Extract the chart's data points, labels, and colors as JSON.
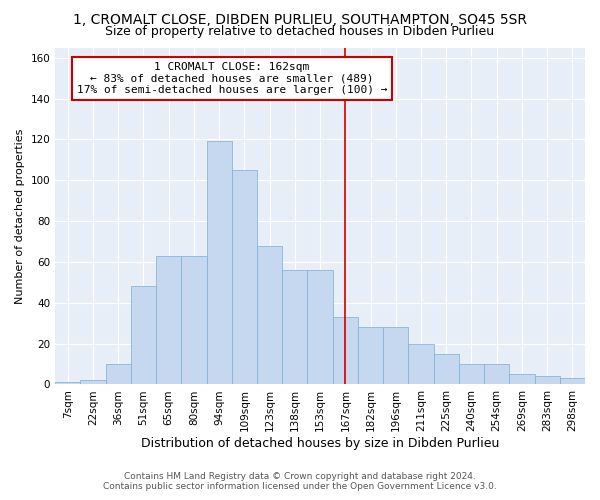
{
  "title": "1, CROMALT CLOSE, DIBDEN PURLIEU, SOUTHAMPTON, SO45 5SR",
  "subtitle": "Size of property relative to detached houses in Dibden Purlieu",
  "xlabel": "Distribution of detached houses by size in Dibden Purlieu",
  "ylabel": "Number of detached properties",
  "categories": [
    "7sqm",
    "22sqm",
    "36sqm",
    "51sqm",
    "65sqm",
    "80sqm",
    "94sqm",
    "109sqm",
    "123sqm",
    "138sqm",
    "153sqm",
    "167sqm",
    "182sqm",
    "196sqm",
    "211sqm",
    "225sqm",
    "240sqm",
    "254sqm",
    "269sqm",
    "283sqm",
    "298sqm"
  ],
  "values": [
    1,
    2,
    10,
    48,
    63,
    63,
    119,
    105,
    68,
    56,
    56,
    33,
    28,
    28,
    20,
    15,
    10,
    10,
    5,
    4,
    3
  ],
  "bar_color": "#c5d8ef",
  "bar_edge_color": "#7aaed6",
  "vline_pos": 11.0,
  "vline_color": "#cc0000",
  "annot_line1": "1 CROMALT CLOSE: 162sqm",
  "annot_line2": "← 83% of detached houses are smaller (489)",
  "annot_line3": "17% of semi-detached houses are larger (100) →",
  "annot_box_edgecolor": "#cc0000",
  "bg_color": "#e8eef8",
  "grid_color": "#ffffff",
  "footer_line1": "Contains HM Land Registry data © Crown copyright and database right 2024.",
  "footer_line2": "Contains public sector information licensed under the Open Government Licence v3.0.",
  "title_fontsize": 10,
  "subtitle_fontsize": 9,
  "ylabel_fontsize": 8,
  "xlabel_fontsize": 9,
  "tick_fontsize": 7.5,
  "annot_fontsize": 8,
  "footer_fontsize": 6.5,
  "ylim": [
    0,
    165
  ],
  "yticks": [
    0,
    20,
    40,
    60,
    80,
    100,
    120,
    140,
    160
  ]
}
